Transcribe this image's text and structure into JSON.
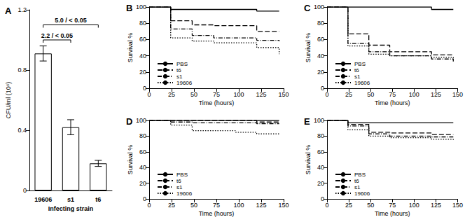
{
  "chart_data": [
    {
      "type": "bar",
      "title": "A",
      "x_label": "Infecting strain",
      "y_label": "CFU/ml (10⁶)",
      "categories": [
        "19606",
        "s1",
        "t6"
      ],
      "values": [
        0.91,
        0.42,
        0.18
      ],
      "errors": [
        0.05,
        0.05,
        0.02
      ],
      "color": "#ffffff",
      "ylim": [
        0,
        1.2
      ],
      "yticks": [
        0,
        0.4,
        0.8,
        1.2
      ],
      "annotations": [
        {
          "text": "2.2 / < 0.05",
          "from": "19606",
          "to": "s1",
          "y": 1.0
        },
        {
          "text": "5.0 / < 0.05",
          "from": "19606",
          "to": "t6",
          "y": 1.1
        }
      ]
    },
    {
      "type": "line",
      "title": "B",
      "x_label": "Time (hours)",
      "y_label": "Survival %",
      "x": [
        0,
        24,
        48,
        72,
        96,
        120,
        145
      ],
      "xlim": [
        0,
        150
      ],
      "xticks": [
        0,
        25,
        50,
        75,
        100,
        125,
        150
      ],
      "ylim": [
        0,
        100
      ],
      "yticks": [
        0,
        20,
        40,
        60,
        80,
        100
      ],
      "legend": "lower left",
      "series": [
        {
          "name": "PBS",
          "color": "#000000",
          "line_style": "solid",
          "values": [
            100,
            97,
            97,
            97,
            97,
            95,
            95
          ]
        },
        {
          "name": "t6",
          "color": "#000000",
          "line_style": "dashed",
          "values": [
            100,
            83,
            78,
            77,
            77,
            70,
            70
          ]
        },
        {
          "name": "s1",
          "color": "#000000",
          "line_style": "dashdot",
          "values": [
            100,
            73,
            65,
            62,
            62,
            59,
            58
          ]
        },
        {
          "name": "19606",
          "color": "#000000",
          "line_style": "dotted",
          "values": [
            100,
            62,
            58,
            56,
            56,
            50,
            42
          ]
        }
      ]
    },
    {
      "type": "line",
      "title": "C",
      "x_label": "Time (hours)",
      "y_label": "Survival %",
      "x": [
        0,
        24,
        48,
        72,
        96,
        120,
        145
      ],
      "xlim": [
        0,
        150
      ],
      "xticks": [
        0,
        25,
        50,
        75,
        100,
        125,
        150
      ],
      "ylim": [
        0,
        100
      ],
      "yticks": [
        0,
        20,
        40,
        60,
        80,
        100
      ],
      "legend": "lower left",
      "series": [
        {
          "name": "PBS",
          "color": "#000000",
          "line_style": "solid",
          "values": [
            100,
            100,
            100,
            100,
            100,
            97,
            97
          ]
        },
        {
          "name": "t6",
          "color": "#000000",
          "line_style": "dashed",
          "values": [
            100,
            67,
            53,
            45,
            45,
            41,
            40
          ]
        },
        {
          "name": "s1",
          "color": "#000000",
          "line_style": "dashdot",
          "values": [
            100,
            55,
            45,
            40,
            40,
            36,
            33
          ]
        },
        {
          "name": "19606",
          "color": "#000000",
          "line_style": "dotted",
          "values": [
            100,
            52,
            42,
            40,
            40,
            38,
            35
          ]
        }
      ]
    },
    {
      "type": "line",
      "title": "D",
      "x_label": "Time (hours)",
      "y_label": "Survival %",
      "x": [
        0,
        24,
        48,
        72,
        96,
        120,
        145
      ],
      "xlim": [
        0,
        150
      ],
      "xticks": [
        0,
        25,
        50,
        75,
        100,
        125,
        150
      ],
      "ylim": [
        0,
        100
      ],
      "yticks": [
        0,
        20,
        40,
        60,
        80,
        100
      ],
      "legend": "lower left",
      "series": [
        {
          "name": "PBS",
          "color": "#000000",
          "line_style": "solid",
          "values": [
            100,
            100,
            100,
            100,
            100,
            100,
            100
          ]
        },
        {
          "name": "t6",
          "color": "#000000",
          "line_style": "dashed",
          "values": [
            100,
            100,
            100,
            100,
            100,
            98,
            98
          ]
        },
        {
          "name": "s1",
          "color": "#000000",
          "line_style": "dashdot",
          "values": [
            100,
            98,
            97,
            97,
            97,
            96,
            96
          ]
        },
        {
          "name": "19606",
          "color": "#000000",
          "line_style": "dotted",
          "values": [
            100,
            94,
            87,
            87,
            85,
            83,
            83
          ]
        }
      ]
    },
    {
      "type": "line",
      "title": "E",
      "x_label": "Time (hours)",
      "y_label": "Survival %",
      "x": [
        0,
        24,
        48,
        72,
        96,
        120,
        145
      ],
      "xlim": [
        0,
        150
      ],
      "xticks": [
        0,
        25,
        50,
        75,
        100,
        125,
        150
      ],
      "ylim": [
        0,
        100
      ],
      "yticks": [
        0,
        20,
        40,
        60,
        80,
        100
      ],
      "legend": "lower left",
      "series": [
        {
          "name": "PBS",
          "color": "#000000",
          "line_style": "solid",
          "values": [
            100,
            97,
            97,
            97,
            97,
            97,
            97
          ]
        },
        {
          "name": "t6",
          "color": "#000000",
          "line_style": "dashed",
          "values": [
            100,
            95,
            85,
            84,
            84,
            82,
            82
          ]
        },
        {
          "name": "s1",
          "color": "#000000",
          "line_style": "dashdot",
          "values": [
            100,
            93,
            83,
            80,
            80,
            79,
            79
          ]
        },
        {
          "name": "19606",
          "color": "#000000",
          "line_style": "dotted",
          "values": [
            100,
            88,
            80,
            78,
            78,
            76,
            75
          ]
        }
      ]
    }
  ]
}
